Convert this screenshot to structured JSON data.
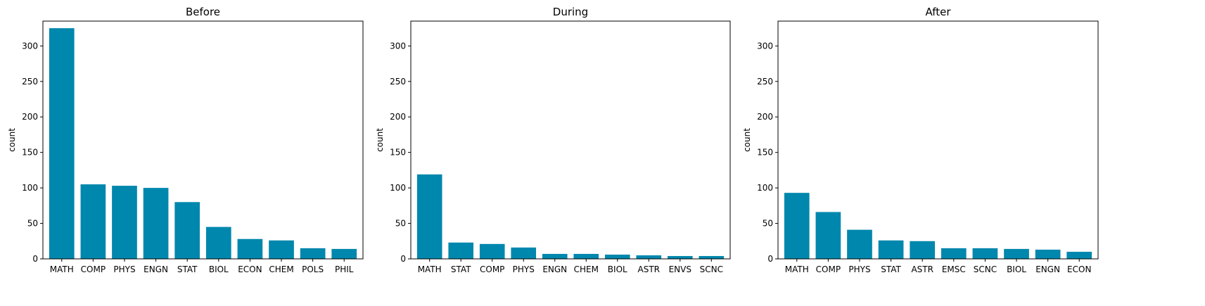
{
  "colors": {
    "bar": "#0087ad",
    "axis": "#000000",
    "background": "#ffffff"
  },
  "chart_data": [
    {
      "type": "bar",
      "title": "Before",
      "xlabel": "",
      "ylabel": "count",
      "ylim": [
        0,
        335
      ],
      "yticks": [
        0,
        50,
        100,
        150,
        200,
        250,
        300
      ],
      "grid": false,
      "categories": [
        "MATH",
        "COMP",
        "PHYS",
        "ENGN",
        "STAT",
        "BIOL",
        "ECON",
        "CHEM",
        "POLS",
        "PHIL"
      ],
      "values": [
        325,
        105,
        103,
        100,
        80,
        45,
        28,
        26,
        15,
        14
      ]
    },
    {
      "type": "bar",
      "title": "During",
      "xlabel": "",
      "ylabel": "count",
      "ylim": [
        0,
        335
      ],
      "yticks": [
        0,
        50,
        100,
        150,
        200,
        250,
        300
      ],
      "grid": false,
      "categories": [
        "MATH",
        "STAT",
        "COMP",
        "PHYS",
        "ENGN",
        "CHEM",
        "BIOL",
        "ASTR",
        "ENVS",
        "SCNC"
      ],
      "values": [
        119,
        23,
        21,
        16,
        7,
        7,
        6,
        5,
        4,
        4
      ]
    },
    {
      "type": "bar",
      "title": "After",
      "xlabel": "",
      "ylabel": "count",
      "ylim": [
        0,
        335
      ],
      "yticks": [
        0,
        50,
        100,
        150,
        200,
        250,
        300
      ],
      "grid": false,
      "categories": [
        "MATH",
        "COMP",
        "PHYS",
        "STAT",
        "ASTR",
        "EMSC",
        "SCNC",
        "BIOL",
        "ENGN",
        "ECON"
      ],
      "values": [
        93,
        66,
        41,
        26,
        25,
        15,
        15,
        14,
        13,
        10
      ]
    }
  ]
}
